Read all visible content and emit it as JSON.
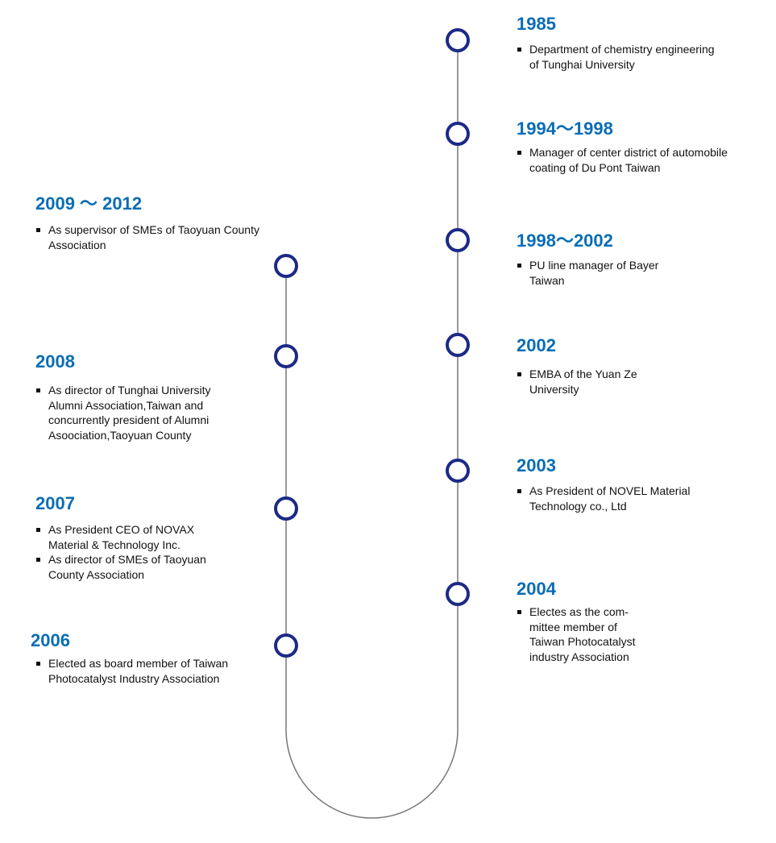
{
  "colors": {
    "year": "#0a6db5",
    "node": "#1c2a85",
    "line": "#777777"
  },
  "right": [
    {
      "year": "1985",
      "items": [
        "Department of chemistry engineering\nof Tunghai University"
      ]
    },
    {
      "year": "1994～1998",
      "items": [
        "Manager of center district of automobile\ncoating of Du Pont Taiwan"
      ]
    },
    {
      "year": "1998～2002",
      "items": [
        "PU line manager of Bayer\nTaiwan"
      ]
    },
    {
      "year": "2002",
      "items": [
        "EMBA of the Yuan Ze\nUniversity"
      ]
    },
    {
      "year": "2003",
      "items": [
        "As President of NOVEL Material\nTechnology co., Ltd"
      ]
    },
    {
      "year": "2004",
      "items": [
        "Electes as the com-\nmittee member of\nTaiwan Photocatalyst\nindustry Association"
      ]
    }
  ],
  "left": [
    {
      "year": "2009 ～ 2012",
      "items": [
        "As supervisor of SMEs of Taoyuan County\nAssociation"
      ]
    },
    {
      "year": "2008",
      "items": [
        "As director of Tunghai University\nAlumni Association,Taiwan and\nconcurrently president of Alumni\nAsoociation,Taoyuan County"
      ]
    },
    {
      "year": "2007",
      "items": [
        "As President CEO of NOVAX\nMaterial & Technology Inc.",
        "As director of SMEs of Taoyuan\nCounty Association"
      ]
    },
    {
      "year": "2006",
      "items": [
        "Elected as board member of Taiwan\nPhotocatalyst Industry Association"
      ]
    }
  ]
}
